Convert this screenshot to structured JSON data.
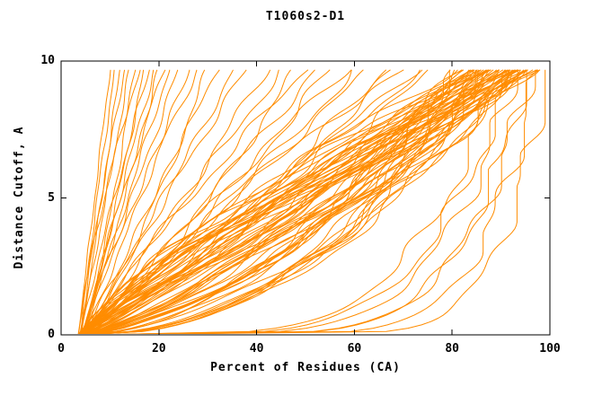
{
  "chart_data": {
    "type": "line",
    "title": "T1060s2-D1",
    "xlabel": "Percent of Residues (CA)",
    "ylabel": "Distance Cutoff, A",
    "xlim": [
      0,
      100
    ],
    "ylim": [
      0,
      10
    ],
    "xticks": [
      0,
      20,
      40,
      60,
      80,
      100
    ],
    "yticks": [
      0,
      5,
      10
    ],
    "grid": false,
    "legend": "none",
    "line_color": "#FF8C00",
    "axis_color": "#000000",
    "background": "#FFFFFF",
    "y_max_drawn": 9.68,
    "note": "Each curve is one model's cumulative accuracy trace, approximated as [percent_at_cutoff_0, percent_at_cutoff_max, shape_exponent]; x(t)=x0+(xe-x0)*t^a with t=cutoff/9.68",
    "curves": [
      [
        3.5,
        10,
        1.0
      ],
      [
        4.0,
        11,
        1.1
      ],
      [
        3.8,
        12,
        0.9
      ],
      [
        4.2,
        13,
        1.2
      ],
      [
        4.0,
        14,
        1.0
      ],
      [
        4.5,
        15,
        0.8
      ],
      [
        3.6,
        16,
        1.3
      ],
      [
        4.8,
        17,
        0.9
      ],
      [
        4.1,
        18,
        1.1
      ],
      [
        4.4,
        19,
        1.0
      ],
      [
        3.9,
        20,
        0.85
      ],
      [
        4.6,
        21,
        1.15
      ],
      [
        4.0,
        22,
        0.95
      ],
      [
        5.0,
        24,
        1.05
      ],
      [
        4.3,
        26,
        0.9
      ],
      [
        4.7,
        28,
        1.2
      ],
      [
        4.1,
        30,
        0.8
      ],
      [
        5.2,
        32,
        1.0
      ],
      [
        4.5,
        35,
        0.9
      ],
      [
        4.9,
        38,
        1.1
      ],
      [
        4.0,
        42,
        0.9
      ],
      [
        4.5,
        45,
        1.0
      ],
      [
        5.0,
        48,
        0.8
      ],
      [
        4.2,
        50,
        1.1
      ],
      [
        4.8,
        52,
        0.95
      ],
      [
        4.4,
        55,
        0.85
      ],
      [
        5.1,
        58,
        1.05
      ],
      [
        4.6,
        60,
        0.9
      ],
      [
        4.3,
        63,
        1.0
      ],
      [
        5.0,
        66,
        0.8
      ],
      [
        4.7,
        68,
        1.1
      ],
      [
        4.5,
        70,
        0.95
      ],
      [
        5.2,
        72,
        0.9
      ],
      [
        4.8,
        74,
        1.0
      ],
      [
        4.4,
        76,
        0.85
      ],
      [
        3.2,
        80,
        0.4
      ],
      [
        4.1,
        81,
        0.55
      ],
      [
        3.8,
        82,
        0.7
      ],
      [
        4.5,
        83,
        0.85
      ],
      [
        3.5,
        84,
        1.0
      ],
      [
        4.2,
        85,
        1.15
      ],
      [
        3.9,
        86,
        1.3
      ],
      [
        4.6,
        87,
        0.45
      ],
      [
        3.6,
        88,
        0.6
      ],
      [
        4.3,
        89,
        0.75
      ],
      [
        4.0,
        90,
        0.9
      ],
      [
        4.7,
        91,
        1.05
      ],
      [
        3.7,
        92,
        1.2
      ],
      [
        4.4,
        93,
        0.5
      ],
      [
        3.4,
        94,
        0.65
      ],
      [
        4.1,
        95,
        0.8
      ],
      [
        3.8,
        96,
        0.95
      ],
      [
        4.5,
        97,
        1.1
      ],
      [
        3.5,
        80.5,
        1.25
      ],
      [
        4.2,
        81.5,
        0.42
      ],
      [
        3.9,
        82.5,
        0.58
      ],
      [
        4.6,
        83.5,
        0.72
      ],
      [
        3.6,
        84.5,
        0.88
      ],
      [
        4.3,
        85.5,
        1.02
      ],
      [
        4.0,
        86.5,
        1.18
      ],
      [
        4.7,
        87.5,
        0.48
      ],
      [
        3.7,
        88.5,
        0.62
      ],
      [
        4.4,
        89.5,
        0.78
      ],
      [
        3.4,
        90.5,
        0.92
      ],
      [
        4.1,
        91.5,
        1.08
      ],
      [
        3.8,
        92.5,
        1.22
      ],
      [
        4.5,
        93.5,
        0.52
      ],
      [
        3.5,
        94.5,
        0.68
      ],
      [
        4.2,
        95.5,
        0.82
      ],
      [
        3.9,
        96.5,
        0.98
      ],
      [
        4.6,
        84,
        1.12
      ],
      [
        3.6,
        85,
        1.28
      ],
      [
        4.3,
        86,
        0.44
      ],
      [
        4.0,
        87,
        0.56
      ],
      [
        4.7,
        88,
        0.74
      ],
      [
        3.7,
        89,
        0.86
      ],
      [
        4.4,
        90,
        1.04
      ],
      [
        3.4,
        91,
        1.16
      ],
      [
        4.1,
        92,
        0.46
      ],
      [
        3.8,
        93,
        0.64
      ],
      [
        4.5,
        94,
        0.76
      ],
      [
        3.5,
        95,
        0.94
      ],
      [
        4.2,
        96,
        1.06
      ],
      [
        3.9,
        97,
        1.24
      ],
      [
        4.6,
        82,
        0.54
      ],
      [
        3.6,
        83,
        0.66
      ],
      [
        4.3,
        84.8,
        0.84
      ],
      [
        4.0,
        85.8,
        0.96
      ],
      [
        4.7,
        86.8,
        1.14
      ],
      [
        3.7,
        87.8,
        1.26
      ],
      [
        4.4,
        88.8,
        0.47
      ],
      [
        3.4,
        89.8,
        0.63
      ],
      [
        4.1,
        90.8,
        0.79
      ],
      [
        3.8,
        91.8,
        0.93
      ],
      [
        4.5,
        92.8,
        1.09
      ],
      [
        3.5,
        93.8,
        1.21
      ],
      [
        4.2,
        94.8,
        0.57
      ],
      [
        3.9,
        95.8,
        0.73
      ],
      [
        4.6,
        96.3,
        0.89
      ],
      [
        4.0,
        88.3,
        1.01
      ],
      [
        5.0,
        93,
        0.18
      ],
      [
        6.0,
        95,
        0.15
      ],
      [
        5.5,
        97,
        0.12
      ],
      [
        7.0,
        90,
        0.22
      ],
      [
        6.5,
        99,
        0.1
      ],
      [
        5.8,
        92,
        0.2
      ],
      [
        8.0,
        96,
        0.16
      ]
    ]
  }
}
